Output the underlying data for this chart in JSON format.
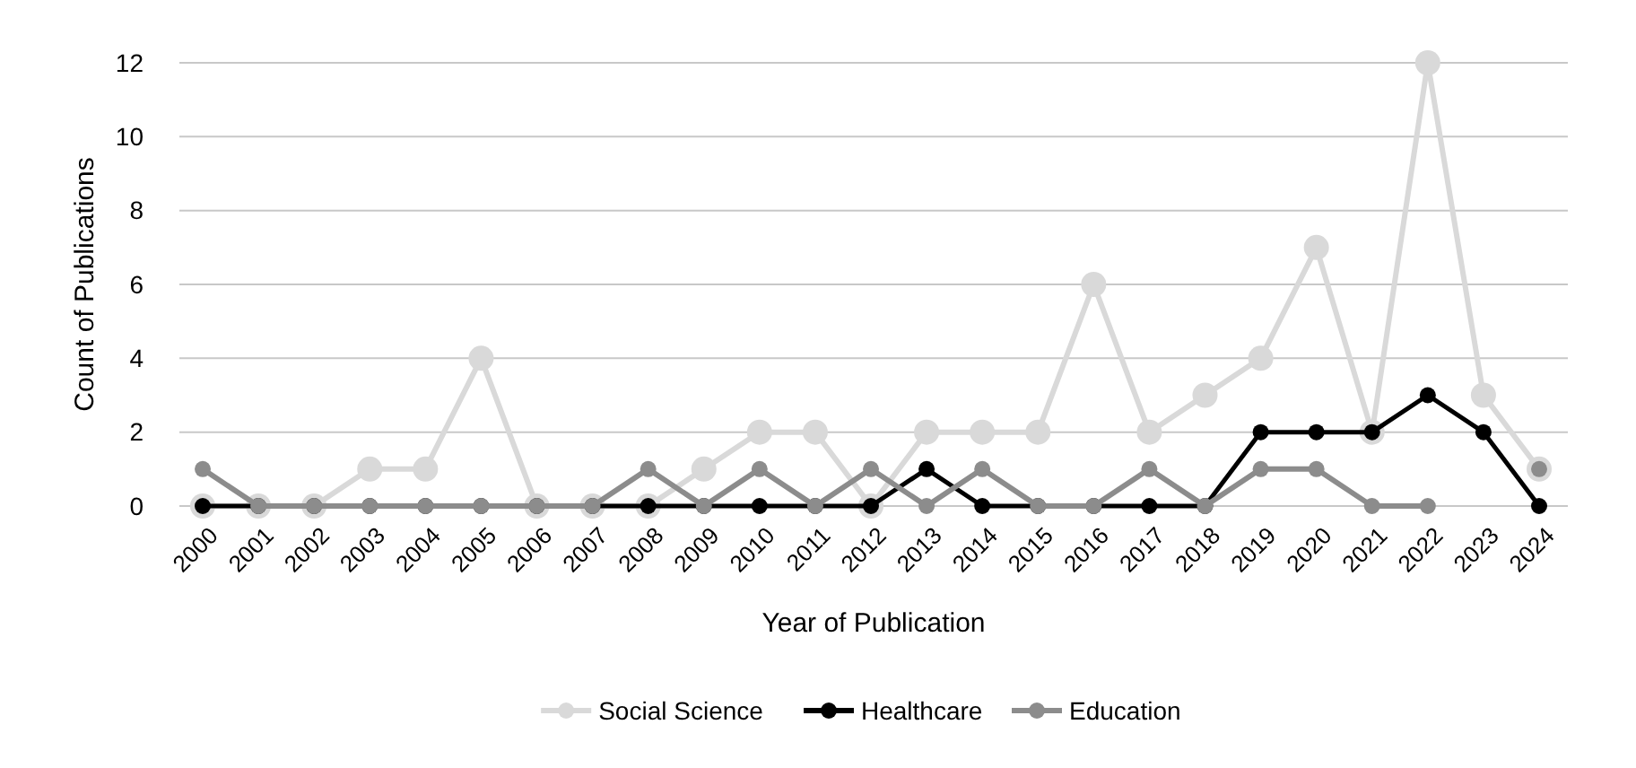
{
  "chart_data": {
    "type": "line",
    "xlabel": "Year of Publication",
    "ylabel": "Count of Publications",
    "categories": [
      "2000",
      "2001",
      "2002",
      "2003",
      "2004",
      "2005",
      "2006",
      "2007",
      "2008",
      "2009",
      "2010",
      "2011",
      "2012",
      "2013",
      "2014",
      "2015",
      "2016",
      "2017",
      "2018",
      "2019",
      "2020",
      "2021",
      "2022",
      "2023",
      "2024"
    ],
    "series": [
      {
        "name": "Social Science",
        "color": "#d9d9d9",
        "values": [
          0,
          0,
          0,
          1,
          1,
          4,
          0,
          0,
          0,
          1,
          2,
          2,
          0,
          2,
          2,
          2,
          6,
          2,
          3,
          4,
          7,
          2,
          12,
          3,
          1
        ]
      },
      {
        "name": "Healthcare",
        "color": "#000000",
        "values": [
          0,
          0,
          0,
          0,
          0,
          0,
          0,
          0,
          0,
          0,
          0,
          0,
          0,
          1,
          0,
          0,
          0,
          0,
          0,
          2,
          2,
          2,
          3,
          2,
          0
        ]
      },
      {
        "name": "Education",
        "color": "#8c8c8c",
        "values": [
          1,
          0,
          0,
          0,
          0,
          0,
          0,
          0,
          1,
          0,
          1,
          0,
          1,
          0,
          1,
          0,
          0,
          1,
          0,
          1,
          1,
          0,
          0,
          null,
          1
        ]
      }
    ],
    "ylim": [
      0,
      12
    ],
    "yticks": [
      0,
      2,
      4,
      6,
      8,
      10,
      12
    ],
    "grid": "y",
    "legend": "bottom",
    "marker": "circle",
    "line_style": "solid"
  }
}
